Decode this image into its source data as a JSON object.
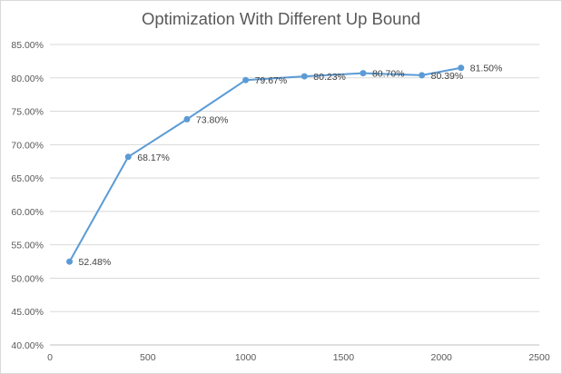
{
  "chart_data": {
    "type": "line",
    "title": "Optimization With Different Up Bound",
    "xlabel": "",
    "ylabel": "",
    "xlim": [
      0,
      2500
    ],
    "ylim": [
      40,
      85
    ],
    "x_ticks": [
      0,
      500,
      1000,
      1500,
      2000,
      2500
    ],
    "y_ticks": [
      40,
      45,
      50,
      55,
      60,
      65,
      70,
      75,
      80,
      85
    ],
    "y_tick_labels": [
      "40.00%",
      "45.00%",
      "50.00%",
      "55.00%",
      "60.00%",
      "65.00%",
      "70.00%",
      "75.00%",
      "80.00%",
      "85.00%"
    ],
    "grid": true,
    "legend": "none",
    "series": [
      {
        "color": "#5b9bd5",
        "x": [
          100,
          400,
          700,
          1000,
          1300,
          1600,
          1900,
          2100
        ],
        "values": [
          52.48,
          68.17,
          73.8,
          79.67,
          80.23,
          80.7,
          80.39,
          81.5
        ],
        "labels": [
          "52.48%",
          "68.17%",
          "73.80%",
          "79.67%",
          "80.23%",
          "80.70%",
          "80.39%",
          "81.50%"
        ]
      }
    ]
  }
}
